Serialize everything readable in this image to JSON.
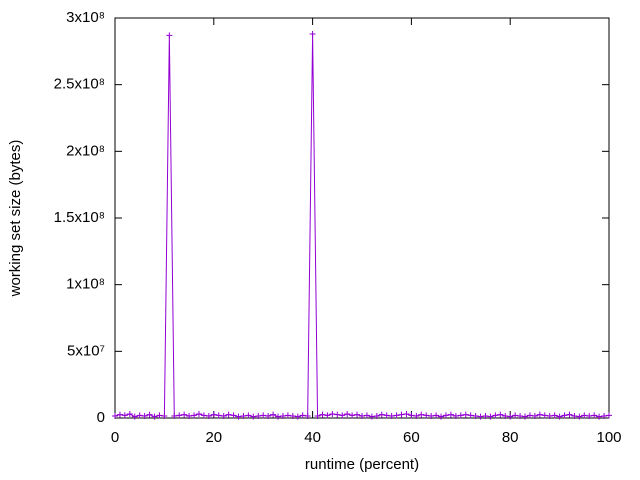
{
  "chart_data": {
    "type": "line",
    "x_label": "runtime (percent)",
    "y_label": "working set size (bytes)",
    "x": [
      0,
      1,
      2,
      3,
      4,
      5,
      6,
      7,
      8,
      9,
      10,
      11,
      12,
      13,
      14,
      15,
      16,
      17,
      18,
      19,
      20,
      21,
      22,
      23,
      24,
      25,
      26,
      27,
      28,
      29,
      30,
      31,
      32,
      33,
      34,
      35,
      36,
      37,
      38,
      39,
      40,
      41,
      42,
      43,
      44,
      45,
      46,
      47,
      48,
      49,
      50,
      51,
      52,
      53,
      54,
      55,
      56,
      57,
      58,
      59,
      60,
      61,
      62,
      63,
      64,
      65,
      66,
      67,
      68,
      69,
      70,
      71,
      72,
      73,
      74,
      75,
      76,
      77,
      78,
      79,
      80,
      81,
      82,
      83,
      84,
      85,
      86,
      87,
      88,
      89,
      90,
      91,
      92,
      93,
      94,
      95,
      96,
      97,
      98,
      99,
      100
    ],
    "series": [
      {
        "color": "#9400d3",
        "values": [
          1500000,
          2500000,
          2000000,
          3000000,
          1000000,
          2000000,
          1500000,
          2500000,
          1000000,
          2000000,
          1500000,
          287000000,
          1500000,
          2000000,
          2500000,
          1500000,
          2000000,
          3000000,
          2000000,
          1500000,
          2500000,
          2000000,
          1500000,
          2500000,
          2000000,
          1000000,
          1500000,
          2000000,
          1000000,
          1500000,
          2000000,
          1500000,
          2500000,
          1000000,
          1500000,
          2000000,
          1500000,
          1000000,
          2000000,
          1500000,
          288000000,
          1500000,
          2500000,
          2000000,
          3000000,
          2500000,
          2000000,
          3000000,
          2000000,
          2500000,
          1500000,
          2000000,
          1000000,
          1500000,
          2500000,
          2000000,
          1500000,
          2000000,
          2500000,
          3000000,
          2000000,
          1500000,
          2500000,
          2000000,
          1500000,
          2000000,
          1000000,
          2000000,
          2500000,
          1500000,
          2000000,
          2500000,
          2000000,
          1500000,
          1000000,
          1500000,
          1000000,
          2000000,
          2500000,
          1500000,
          1000000,
          2000000,
          1500000,
          1000000,
          2000000,
          1500000,
          2500000,
          2000000,
          1500000,
          2000000,
          1000000,
          2000000,
          2500000,
          1500000,
          1000000,
          2000000,
          1500000,
          2000000,
          1000000,
          1500000,
          2000000
        ]
      }
    ],
    "xlim": [
      0,
      100
    ],
    "xticks": [
      0,
      20,
      40,
      60,
      80,
      100
    ],
    "ylim": [
      0,
      300000000
    ],
    "yticks": [
      0,
      {
        "value": 50000000,
        "label": "5x10⁷"
      },
      {
        "value": 100000000,
        "label": "1x10⁸"
      },
      {
        "value": 150000000,
        "label": "1.5x10⁸"
      },
      {
        "value": 200000000,
        "label": "2x10⁸"
      },
      {
        "value": 250000000,
        "label": "2.5x10⁸"
      },
      {
        "value": 300000000,
        "label": "3x10⁸"
      }
    ]
  }
}
